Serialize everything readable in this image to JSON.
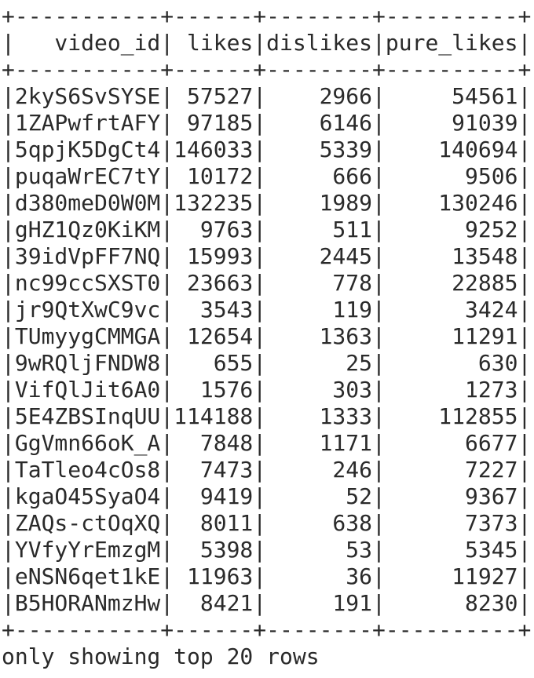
{
  "table": {
    "border": "+-----------+------+--------+----------+",
    "header": "|   video_id| likes|dislikes|pure_likes|",
    "rows": [
      "|2kyS6SvSYSE| 57527|    2966|     54561|",
      "|1ZAPwfrtAFY| 97185|    6146|     91039|",
      "|5qpjK5DgCt4|146033|    5339|    140694|",
      "|puqaWrEC7tY| 10172|     666|      9506|",
      "|d380meD0W0M|132235|    1989|    130246|",
      "|gHZ1Qz0KiKM|  9763|     511|      9252|",
      "|39idVpFF7NQ| 15993|    2445|     13548|",
      "|nc99ccSXST0| 23663|     778|     22885|",
      "|jr9QtXwC9vc|  3543|     119|      3424|",
      "|TUmyygCMMGA| 12654|    1363|     11291|",
      "|9wRQljFNDW8|   655|      25|       630|",
      "|VifQlJit6A0|  1576|     303|      1273|",
      "|5E4ZBSInqUU|114188|    1333|    112855|",
      "|GgVmn66oK_A|  7848|    1171|      6677|",
      "|TaTleo4cOs8|  7473|     246|      7227|",
      "|kgaO45SyaO4|  9419|      52|      9367|",
      "|ZAQs-ctOqXQ|  8011|     638|      7373|",
      "|YVfyYrEmzgM|  5398|      53|      5345|",
      "|eNSN6qet1kE| 11963|      36|     11927|",
      "|B5HORANmzHw|  8421|     191|      8230|"
    ]
  },
  "footer": "only showing top 20 rows"
}
